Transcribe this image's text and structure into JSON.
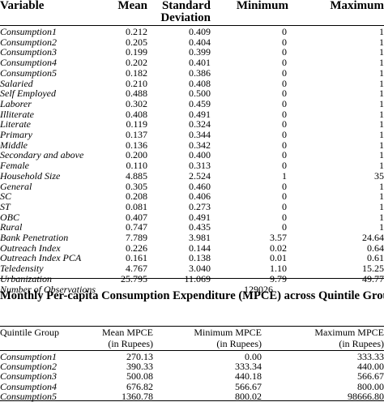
{
  "table1": {
    "headers": {
      "variable": "Variable",
      "mean": "Mean",
      "sd_line1": "Standard",
      "sd_line2": "Deviation",
      "minimum": "Minimum",
      "maximum": "Maximum"
    },
    "rows": [
      {
        "var": "Consumption1",
        "mean": "0.212",
        "sd": "0.409",
        "min": "0",
        "max": "1"
      },
      {
        "var": "Consumption2",
        "mean": "0.205",
        "sd": "0.404",
        "min": "0",
        "max": "1"
      },
      {
        "var": "Consumption3",
        "mean": "0.199",
        "sd": "0.399",
        "min": "0",
        "max": "1"
      },
      {
        "var": "Consumption4",
        "mean": "0.202",
        "sd": "0.401",
        "min": "0",
        "max": "1"
      },
      {
        "var": "Consumption5",
        "mean": "0.182",
        "sd": "0.386",
        "min": "0",
        "max": "1"
      },
      {
        "var": "Salaried",
        "mean": "0.210",
        "sd": "0.408",
        "min": "0",
        "max": "1"
      },
      {
        "var": "Self Employed",
        "mean": "0.488",
        "sd": "0.500",
        "min": "0",
        "max": "1"
      },
      {
        "var": "Laborer",
        "mean": "0.302",
        "sd": "0.459",
        "min": "0",
        "max": "1"
      },
      {
        "var": "Illiterate",
        "mean": "0.408",
        "sd": "0.491",
        "min": "0",
        "max": "1"
      },
      {
        "var": "Literate",
        "mean": "0.119",
        "sd": "0.324",
        "min": "0",
        "max": "1"
      },
      {
        "var": "Primary",
        "mean": "0.137",
        "sd": "0.344",
        "min": "0",
        "max": "1"
      },
      {
        "var": "Middle",
        "mean": "0.136",
        "sd": "0.342",
        "min": "0",
        "max": "1"
      },
      {
        "var": "Secondary and above",
        "mean": "0.200",
        "sd": "0.400",
        "min": "0",
        "max": "1"
      },
      {
        "var": "Female",
        "mean": "0.110",
        "sd": "0.313",
        "min": "0",
        "max": "1"
      },
      {
        "var": "Household Size",
        "mean": "4.885",
        "sd": "2.524",
        "min": "1",
        "max": "35"
      },
      {
        "var": "General",
        "mean": "0.305",
        "sd": "0.460",
        "min": "0",
        "max": "1"
      },
      {
        "var": "SC",
        "mean": "0.208",
        "sd": "0.406",
        "min": "0",
        "max": "1"
      },
      {
        "var": "ST",
        "mean": "0.081",
        "sd": "0.273",
        "min": "0",
        "max": "1"
      },
      {
        "var": "OBC",
        "mean": "0.407",
        "sd": "0.491",
        "min": "0",
        "max": "1"
      },
      {
        "var": "Rural",
        "mean": "0.747",
        "sd": "0.435",
        "min": "0",
        "max": "1"
      },
      {
        "var": "Bank Penetration",
        "mean": "7.789",
        "sd": "3.981",
        "min": "3.57",
        "max": "24.64"
      },
      {
        "var": "Outreach Index",
        "mean": "0.226",
        "sd": "0.144",
        "min": "0.02",
        "max": "0.64"
      },
      {
        "var": "Outreach Index PCA",
        "mean": "0.161",
        "sd": "0.138",
        "min": "0.01",
        "max": "0.61"
      },
      {
        "var": "Teledensity",
        "mean": "4.767",
        "sd": "3.040",
        "min": "1.10",
        "max": "15.25"
      },
      {
        "var": "Urbanization",
        "mean": "25.795",
        "sd": "11.069",
        "min": "9.79",
        "max": "49.77"
      }
    ],
    "observations": {
      "label": "Number of Observations",
      "value": "129026"
    }
  },
  "table2": {
    "title": "Monthly Per-capita Consumption Expenditure (MPCE) across Quintile Groups",
    "headers": {
      "group": "Quintile Group",
      "mean_line1": "Mean MPCE",
      "min_line1": "Minimum MPCE",
      "max_line1": "Maximum MPCE",
      "unit": "(in Rupees)"
    },
    "rows": [
      {
        "group": "Consumption1",
        "mean": "270.13",
        "min": "0.00",
        "max": "333.33"
      },
      {
        "group": "Consumption2",
        "mean": "390.33",
        "min": "333.34",
        "max": "440.00"
      },
      {
        "group": "Consumption3",
        "mean": "500.08",
        "min": "440.18",
        "max": "566.67"
      },
      {
        "group": "Consumption4",
        "mean": "676.82",
        "min": "566.67",
        "max": "800.00"
      },
      {
        "group": "Consumption5",
        "mean": "1360.78",
        "min": "800.02",
        "max": "98666.80"
      }
    ]
  }
}
